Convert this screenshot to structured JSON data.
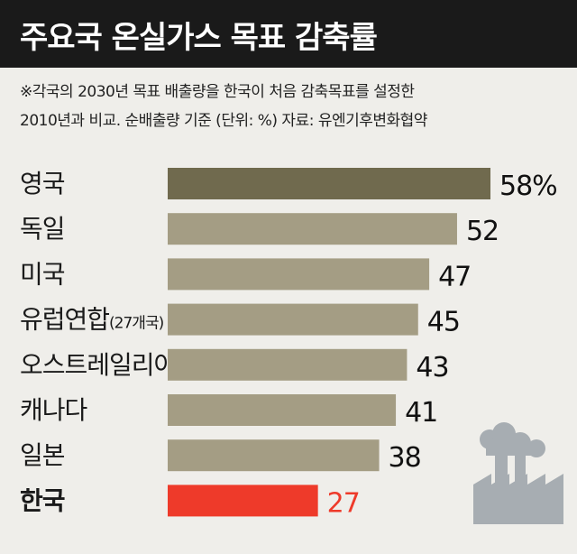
{
  "header": {
    "title": "주요국 온실가스 목표 감축률"
  },
  "note": {
    "line1": "※각국의 2030년 목표 배출량을 한국이 처음 감축목표를 설정한",
    "line2": "2010년과 비교. 순배출량 기준 (단위: %) 자료: 유엔기후변화협약"
  },
  "icon": {
    "name": "factory-icon"
  },
  "colors": {
    "highlight_bar": "#ee3a2a",
    "highlight_text": "#ee3a2a",
    "top_bar": "#706a4e",
    "default_bar": "#a49d84",
    "icon": "#a7adb2"
  },
  "chart_data": {
    "type": "bar",
    "orientation": "horizontal",
    "categories": [
      "영국",
      "독일",
      "미국",
      "유럽연합(27개국)",
      "오스트레일리아",
      "캐나다",
      "일본",
      "한국"
    ],
    "category_main": [
      "영국",
      "독일",
      "미국",
      "유럽연합",
      "오스트레일리아",
      "캐나다",
      "일본",
      "한국"
    ],
    "category_sub": [
      "",
      "",
      "",
      "(27개국)",
      "",
      "",
      "",
      ""
    ],
    "values": [
      58,
      52,
      47,
      45,
      43,
      41,
      38,
      27
    ],
    "value_labels": [
      "58%",
      "52",
      "47",
      "45",
      "43",
      "41",
      "38",
      "27"
    ],
    "unit": "%",
    "xlim": [
      0,
      58
    ],
    "grid": false,
    "legend": "none"
  }
}
